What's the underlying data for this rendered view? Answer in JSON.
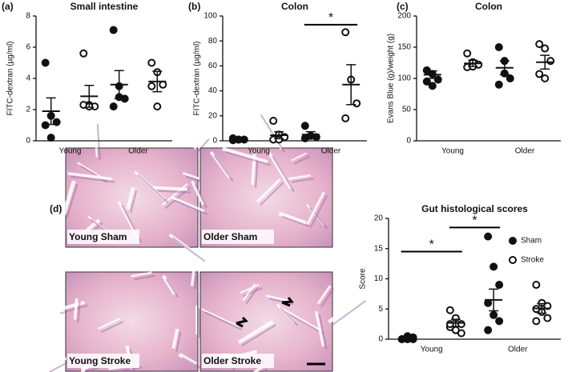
{
  "chart_data": [
    {
      "type": "dot",
      "label": "(a)",
      "title": "Small intestine",
      "ylabel": "FITC-dextran (µg/ml)",
      "categories": [
        "Young",
        "Older"
      ],
      "ylim": [
        0,
        8
      ],
      "yticks": [
        0,
        2,
        4,
        6,
        8
      ],
      "series": [
        {
          "marker": "filled",
          "color": "#111111",
          "points": [
            [
              5.0,
              1.6,
              1.2,
              1.0,
              0.2
            ],
            [
              7.1,
              3.5,
              2.7,
              2.2,
              2.8
            ]
          ],
          "mean": [
            1.9,
            3.6
          ],
          "sem": [
            0.85,
            0.9
          ]
        },
        {
          "marker": "open",
          "color": "#111111",
          "points": [
            [
              5.6,
              2.3,
              2.2,
              2.3,
              2.2
            ],
            [
              5.0,
              4.4,
              3.6,
              3.5,
              2.2
            ]
          ],
          "mean": [
            2.85,
            3.8
          ],
          "sem": [
            0.7,
            0.65
          ]
        }
      ]
    },
    {
      "type": "dot",
      "label": "(b)",
      "title": "Colon",
      "ylabel": "FITC-dextran (µg/ml)",
      "categories": [
        "Young",
        "Older"
      ],
      "ylim": [
        0,
        100
      ],
      "yticks": [
        0,
        20,
        40,
        60,
        80,
        100
      ],
      "series": [
        {
          "marker": "filled",
          "color": "#111111",
          "points": [
            [
              2,
              1,
              1,
              0.5,
              1
            ],
            [
              12,
              4,
              3,
              2
            ]
          ],
          "mean": [
            1.5,
            5
          ],
          "sem": [
            0.5,
            2.3
          ]
        },
        {
          "marker": "open",
          "color": "#111111",
          "points": [
            [
              16,
              5,
              3,
              1,
              1
            ],
            [
              87,
              49,
              30,
              18
            ]
          ],
          "mean": [
            4.5,
            45
          ],
          "sem": [
            2.8,
            16
          ]
        }
      ],
      "annotations": [
        {
          "text": "*",
          "y": 93,
          "groups": [
            [
              1,
              0
            ],
            [
              1,
              1
            ]
          ]
        }
      ]
    },
    {
      "type": "dot",
      "label": "(c)",
      "title": "Colon",
      "ylabel": "Evans Blue (g)/weight (g)",
      "categories": [
        "Young",
        "Older"
      ],
      "ylim": [
        0,
        200
      ],
      "yticks": [
        0,
        50,
        100,
        150,
        200
      ],
      "series": [
        {
          "marker": "filled",
          "color": "#111111",
          "points": [
            [
              113,
              107,
              98,
              95,
              88
            ],
            [
              150,
              128,
              100,
              90,
              108
            ]
          ],
          "mean": [
            106,
            117
          ],
          "sem": [
            6,
            11
          ]
        },
        {
          "marker": "open",
          "color": "#111111",
          "points": [
            [
              140,
              126,
              122,
              118,
              119
            ],
            [
              155,
              148,
              128,
              107,
              100
            ]
          ],
          "mean": [
            124,
            126
          ],
          "sem": [
            5,
            11
          ]
        }
      ]
    },
    {
      "type": "dot",
      "label": "(d)",
      "title": "Gut histological scores",
      "ylabel": "Score",
      "categories": [
        "Young",
        "Older"
      ],
      "ylim": [
        0,
        20
      ],
      "yticks": [
        0,
        5,
        10,
        15,
        20
      ],
      "series": [
        {
          "name": "Sham",
          "marker": "filled",
          "color": "#111111",
          "points": [
            [
              0,
              0,
              0,
              0,
              0.5,
              0.3
            ],
            [
              17,
              12,
              9,
              6,
              4,
              3,
              1.5
            ]
          ],
          "mean": [
            0.2,
            6.5
          ],
          "sem": [
            0.1,
            1.8
          ]
        },
        {
          "name": "Stroke",
          "marker": "open",
          "color": "#111111",
          "points": [
            [
              4.8,
              3.5,
              2.5,
              2,
              1.5,
              1,
              2.5
            ],
            [
              9,
              6,
              5.5,
              5,
              4.5,
              3.5,
              3
            ]
          ],
          "mean": [
            2.7,
            5.1
          ],
          "sem": [
            0.6,
            0.8
          ]
        }
      ],
      "annotations": [
        {
          "text": "*",
          "y": 14.5,
          "groups": [
            [
              0,
              0
            ],
            [
              0,
              1
            ]
          ]
        },
        {
          "text": "*",
          "y": 18.5,
          "groups": [
            [
              0,
              1
            ],
            [
              1,
              0
            ]
          ]
        }
      ]
    }
  ],
  "images": [
    {
      "label": "Young Sham"
    },
    {
      "label": "Older Sham"
    },
    {
      "label": "Young Stroke"
    },
    {
      "label": "Older Stroke"
    }
  ]
}
